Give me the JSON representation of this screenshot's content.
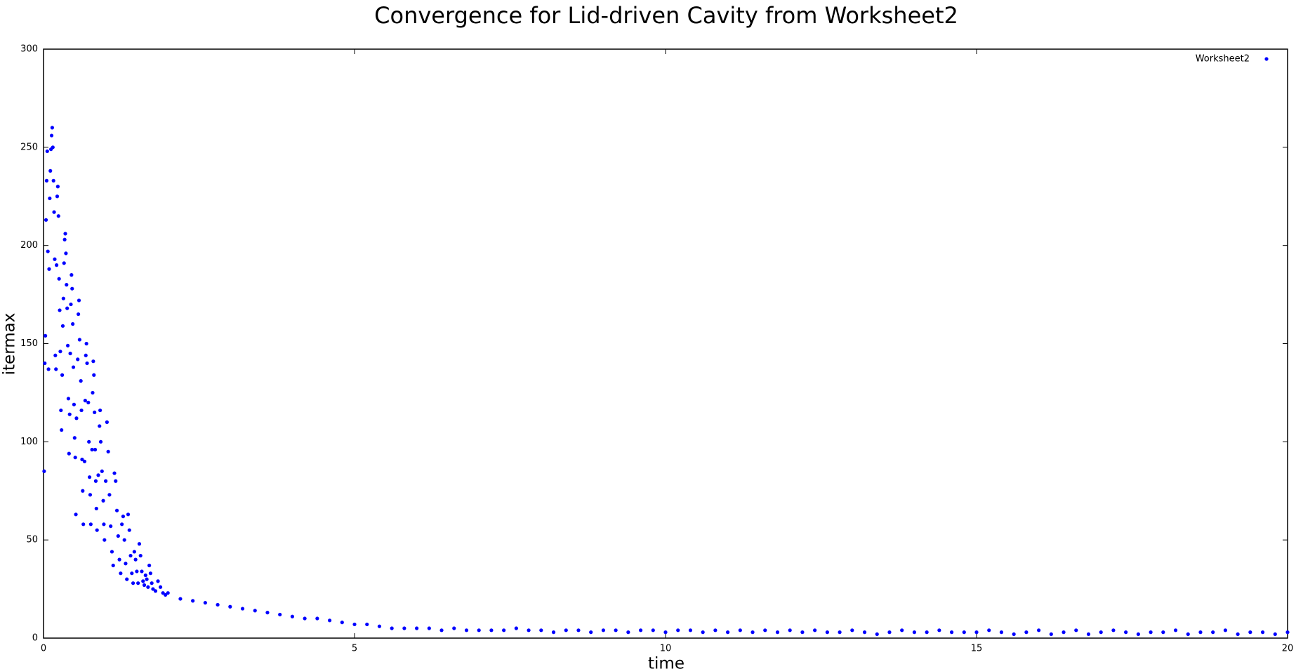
{
  "chart_data": {
    "type": "scatter",
    "title": "Convergence for Lid-driven Cavity from Worksheet2",
    "xlabel": "time",
    "ylabel": "itermax",
    "xlim": [
      0,
      20
    ],
    "ylim": [
      0,
      300
    ],
    "xticks": [
      0,
      5,
      10,
      15,
      20
    ],
    "yticks": [
      0,
      50,
      100,
      150,
      200,
      250,
      300
    ],
    "legend": "upper right",
    "series": [
      {
        "name": "Worksheet2",
        "color": "#0000ff",
        "x": [
          0.01,
          0.02,
          0.03,
          0.04,
          0.05,
          0.06,
          0.07,
          0.08,
          0.09,
          0.1,
          0.11,
          0.12,
          0.13,
          0.14,
          0.15,
          0.16,
          0.17,
          0.18,
          0.19,
          0.2,
          0.21,
          0.22,
          0.23,
          0.24,
          0.25,
          0.26,
          0.27,
          0.28,
          0.29,
          0.3,
          0.31,
          0.32,
          0.33,
          0.34,
          0.35,
          0.36,
          0.37,
          0.38,
          0.39,
          0.4,
          0.41,
          0.42,
          0.43,
          0.44,
          0.45,
          0.46,
          0.47,
          0.48,
          0.49,
          0.5,
          0.51,
          0.52,
          0.53,
          0.55,
          0.56,
          0.57,
          0.58,
          0.6,
          0.61,
          0.62,
          0.63,
          0.64,
          0.66,
          0.67,
          0.68,
          0.69,
          0.7,
          0.72,
          0.73,
          0.74,
          0.75,
          0.76,
          0.78,
          0.79,
          0.8,
          0.81,
          0.82,
          0.83,
          0.84,
          0.85,
          0.86,
          0.88,
          0.9,
          0.91,
          0.92,
          0.94,
          0.96,
          0.97,
          0.98,
          1.0,
          1.02,
          1.04,
          1.06,
          1.08,
          1.1,
          1.12,
          1.14,
          1.16,
          1.18,
          1.2,
          1.22,
          1.24,
          1.26,
          1.28,
          1.3,
          1.32,
          1.34,
          1.36,
          1.38,
          1.4,
          1.42,
          1.44,
          1.46,
          1.48,
          1.5,
          1.52,
          1.54,
          1.56,
          1.58,
          1.6,
          1.62,
          1.64,
          1.66,
          1.68,
          1.7,
          1.72,
          1.74,
          1.76,
          1.8,
          1.84,
          1.88,
          1.92,
          1.96,
          2.0,
          2.2,
          2.4,
          2.6,
          2.8,
          3.0,
          3.2,
          3.4,
          3.6,
          3.8,
          4.0,
          4.2,
          4.4,
          4.6,
          4.8,
          5.0,
          5.2,
          5.4,
          5.6,
          5.8,
          6.0,
          6.2,
          6.4,
          6.6,
          6.8,
          7.0,
          7.2,
          7.4,
          7.6,
          7.8,
          8.0,
          8.2,
          8.4,
          8.6,
          8.8,
          9.0,
          9.2,
          9.4,
          9.6,
          9.8,
          10.0,
          10.2,
          10.4,
          10.6,
          10.8,
          11.0,
          11.2,
          11.4,
          11.6,
          11.8,
          12.0,
          12.2,
          12.4,
          12.6,
          12.8,
          13.0,
          13.2,
          13.4,
          13.6,
          13.8,
          14.0,
          14.2,
          14.4,
          14.6,
          14.8,
          15.0,
          15.2,
          15.4,
          15.6,
          15.8,
          16.0,
          16.2,
          16.4,
          16.6,
          16.8,
          17.0,
          17.2,
          17.4,
          17.6,
          17.8,
          18.0,
          18.2,
          18.4,
          18.6,
          18.8,
          19.0,
          19.2,
          19.4,
          19.6,
          19.8,
          20.0
        ],
        "values": [
          85,
          140,
          154,
          213,
          233,
          248,
          197,
          137,
          188,
          224,
          238,
          249,
          256,
          260,
          250,
          233,
          217,
          193,
          144,
          137,
          190,
          225,
          230,
          215,
          183,
          167,
          146,
          116,
          106,
          134,
          159,
          173,
          191,
          203,
          206,
          196,
          180,
          168,
          149,
          122,
          94,
          114,
          145,
          170,
          185,
          178,
          160,
          138,
          119,
          102,
          92,
          63,
          112,
          142,
          165,
          172,
          152,
          131,
          116,
          91,
          75,
          58,
          90,
          121,
          144,
          150,
          140,
          120,
          100,
          82,
          73,
          58,
          96,
          125,
          141,
          134,
          115,
          96,
          80,
          66,
          55,
          83,
          108,
          116,
          100,
          85,
          70,
          58,
          50,
          80,
          110,
          95,
          73,
          57,
          44,
          37,
          84,
          80,
          65,
          52,
          40,
          33,
          58,
          62,
          50,
          38,
          30,
          63,
          55,
          42,
          33,
          28,
          44,
          40,
          34,
          28,
          48,
          42,
          34,
          29,
          27,
          32,
          30,
          26,
          37,
          33,
          28,
          25,
          24,
          29,
          26,
          23,
          22,
          23,
          20,
          19,
          18,
          17,
          16,
          15,
          14,
          13,
          12,
          11,
          10,
          10,
          9,
          8,
          7,
          7,
          6,
          5,
          5,
          5,
          5,
          4,
          5,
          4,
          4,
          4,
          4,
          5,
          4,
          4,
          3,
          4,
          4,
          3,
          4,
          4,
          3,
          4,
          4,
          3,
          4,
          4,
          3,
          4,
          3,
          4,
          3,
          4,
          3,
          4,
          3,
          4,
          3,
          3,
          4,
          3,
          2,
          3,
          4,
          3,
          3,
          4,
          3,
          3,
          3,
          4,
          3,
          2,
          3,
          4,
          2,
          3,
          4,
          2,
          3,
          4,
          3,
          2,
          3,
          3,
          4,
          2,
          3,
          3,
          4,
          2,
          3,
          3,
          2,
          3
        ]
      }
    ]
  }
}
